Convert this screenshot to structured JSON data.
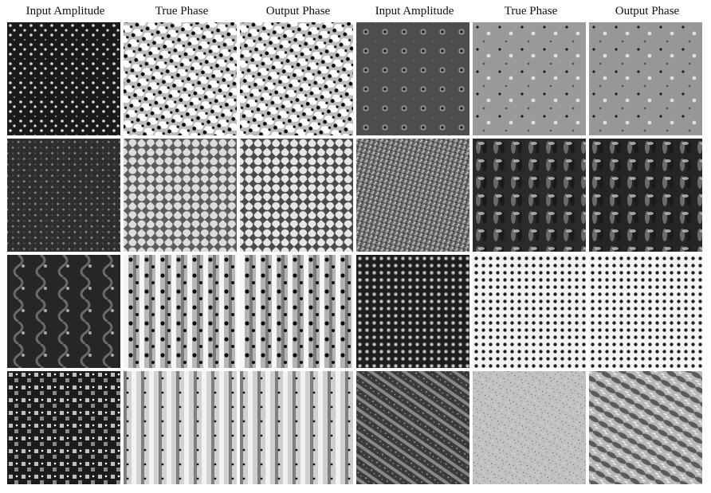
{
  "figure": {
    "column_headers": [
      "Input Amplitude",
      "True Phase",
      "Output Phase",
      "Input Amplitude",
      "True Phase",
      "Output Phase"
    ]
  },
  "rows": [
    {
      "tiles": [
        {
          "kind": "amplitude",
          "pattern": "dark-zigzag-dots",
          "bg": "#1a1a1a",
          "fg": "#d9d9d9"
        },
        {
          "kind": "phase",
          "pattern": "bright-blobs-dark-spots",
          "bg": "#e6e6e6",
          "fg": "#0a0a0a"
        },
        {
          "kind": "phase",
          "pattern": "bright-blobs-dark-spots",
          "bg": "#e3e3e3",
          "fg": "#0a0a0a"
        },
        {
          "kind": "amplitude",
          "pattern": "grey-rings",
          "bg": "#4d4d4d",
          "fg": "#bbbbbb"
        },
        {
          "kind": "phase",
          "pattern": "grey-sparse-dots",
          "bg": "#9a9a9a",
          "fg": "#1a1a1a"
        },
        {
          "kind": "phase",
          "pattern": "grey-sparse-dots",
          "bg": "#979797",
          "fg": "#1a1a1a"
        }
      ]
    },
    {
      "tiles": [
        {
          "kind": "amplitude",
          "pattern": "dark-fine-lattice",
          "bg": "#2e2e2e",
          "fg": "#8a8a8a"
        },
        {
          "kind": "phase",
          "pattern": "checker-blobs",
          "bg": "#5c5c5c",
          "fg": "#dcdcdc"
        },
        {
          "kind": "phase",
          "pattern": "checker-blobs",
          "bg": "#4a4a4a",
          "fg": "#e6e6e6"
        },
        {
          "kind": "amplitude",
          "pattern": "grey-noise",
          "bg": "#6e6e6e",
          "fg": "#b0b0b0"
        },
        {
          "kind": "phase",
          "pattern": "dark-weave",
          "bg": "#2a2a2a",
          "fg": "#9e9e9e"
        },
        {
          "kind": "phase",
          "pattern": "dark-weave",
          "bg": "#252525",
          "fg": "#a6a6a6"
        }
      ]
    },
    {
      "tiles": [
        {
          "kind": "amplitude",
          "pattern": "dark-waves",
          "bg": "#262626",
          "fg": "#7a7a7a"
        },
        {
          "kind": "phase",
          "pattern": "stripes-with-spots",
          "bg": "#b8b8b8",
          "fg": "#0a0a0a"
        },
        {
          "kind": "phase",
          "pattern": "stripes-with-spots",
          "bg": "#b3b3b3",
          "fg": "#0a0a0a"
        },
        {
          "kind": "amplitude",
          "pattern": "dark-dot-grid",
          "bg": "#1e1e1e",
          "fg": "#9a9a9a"
        },
        {
          "kind": "phase",
          "pattern": "light-dot-grid",
          "bg": "#f2f2f2",
          "fg": "#222222"
        },
        {
          "kind": "phase",
          "pattern": "light-dot-grid",
          "bg": "#f4f4f4",
          "fg": "#222222"
        }
      ]
    },
    {
      "tiles": [
        {
          "kind": "amplitude",
          "pattern": "dark-bright-lattice",
          "bg": "#1c1c1c",
          "fg": "#e0e0e0"
        },
        {
          "kind": "phase",
          "pattern": "vertical-bands",
          "bg": "#d2d2d2",
          "fg": "#4a4a4a"
        },
        {
          "kind": "phase",
          "pattern": "vertical-bands",
          "bg": "#cfcfcf",
          "fg": "#4a4a4a"
        },
        {
          "kind": "amplitude",
          "pattern": "diagonal-noisy",
          "bg": "#3a3a3a",
          "fg": "#a8a8a8"
        },
        {
          "kind": "phase",
          "pattern": "light-speckle",
          "bg": "#c2c2c2",
          "fg": "#6a6a6a"
        },
        {
          "kind": "phase",
          "pattern": "diagonal-smooth",
          "bg": "#b8b8b8",
          "fg": "#3a3a3a"
        }
      ]
    }
  ]
}
